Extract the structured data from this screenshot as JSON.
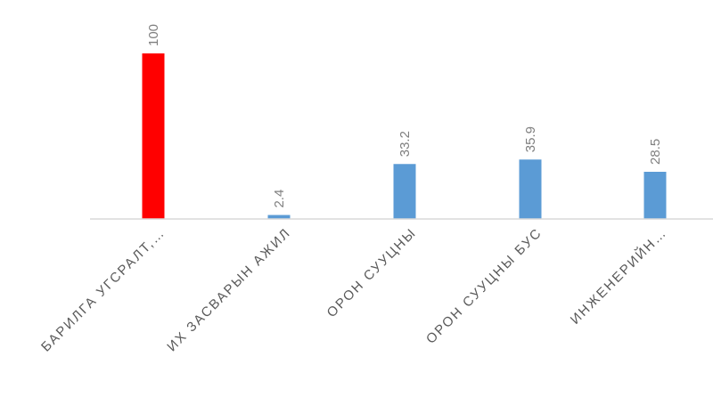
{
  "chart_data": {
    "type": "bar",
    "categories": [
      "БАРИЛГА УГСРАЛТ,…",
      "ИХ ЗАСВАРЫН АЖИЛ",
      "ОРОН СУУЦНЫ",
      "ОРОН СУУЦНЫ БУС",
      "ИНЖЕНЕРИЙН…"
    ],
    "values": [
      100,
      2.4,
      33.2,
      35.9,
      28.5
    ],
    "data_labels": [
      "100",
      "2.4",
      "33.2",
      "35.9",
      "28.5"
    ],
    "bar_colors": [
      "#ff0000",
      "#5b9bd5",
      "#5b9bd5",
      "#5b9bd5",
      "#5b9bd5"
    ],
    "ylim": [
      0,
      100
    ],
    "grid": false,
    "legend": "none",
    "title": "",
    "xlabel": "",
    "ylabel": ""
  },
  "colors": {
    "highlight": "#ff0000",
    "series": "#5b9bd5",
    "baseline": "#d9d9d9",
    "label_text": "#7f7f7f",
    "category_text": "#595959"
  }
}
